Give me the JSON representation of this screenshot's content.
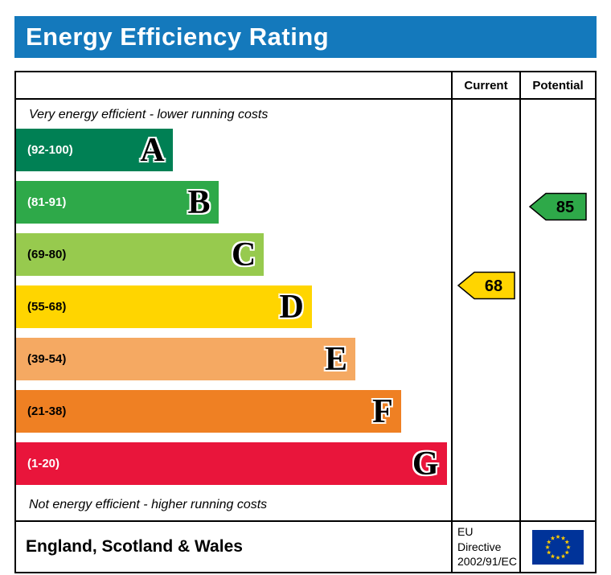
{
  "page": {
    "title": "Energy Efficiency Rating"
  },
  "table": {
    "columns": {
      "current": "Current",
      "potential": "Potential"
    },
    "caption_top": "Very energy efficient - lower running costs",
    "caption_bottom": "Not energy efficient - higher running costs"
  },
  "footer": {
    "region": "England, Scotland & Wales",
    "directive_line1": "EU Directive",
    "directive_line2": "2002/91/EC"
  },
  "colors": {
    "header_blue": "#1479BC",
    "flag_blue": "#003399",
    "flag_star_yellow": "#FFCC00"
  },
  "chart_data": {
    "type": "bar",
    "title": "Energy Efficiency Rating",
    "bands": [
      {
        "letter": "A",
        "range": "(92-100)",
        "min": 92,
        "max": 100,
        "color": "#008054",
        "label_color": "#ffffff",
        "width_pct": 36
      },
      {
        "letter": "B",
        "range": "(81-91)",
        "min": 81,
        "max": 91,
        "color": "#2EA949",
        "label_color": "#ffffff",
        "width_pct": 46.5
      },
      {
        "letter": "C",
        "range": "(69-80)",
        "min": 69,
        "max": 80,
        "color": "#97CA4E",
        "label_color": "#000000",
        "width_pct": 57
      },
      {
        "letter": "D",
        "range": "(55-68)",
        "min": 55,
        "max": 68,
        "color": "#FFD500",
        "label_color": "#000000",
        "width_pct": 68
      },
      {
        "letter": "E",
        "range": "(39-54)",
        "min": 39,
        "max": 54,
        "color": "#F5A962",
        "label_color": "#000000",
        "width_pct": 78
      },
      {
        "letter": "F",
        "range": "(21-38)",
        "min": 21,
        "max": 38,
        "color": "#EF8023",
        "label_color": "#000000",
        "width_pct": 88.5
      },
      {
        "letter": "G",
        "range": "(1-20)",
        "min": 1,
        "max": 20,
        "color": "#E9153B",
        "label_color": "#ffffff",
        "width_pct": 99
      }
    ],
    "current": {
      "value": 68,
      "band": "D",
      "color": "#FFD500"
    },
    "potential": {
      "value": 85,
      "band": "B",
      "color": "#2EA949"
    }
  }
}
